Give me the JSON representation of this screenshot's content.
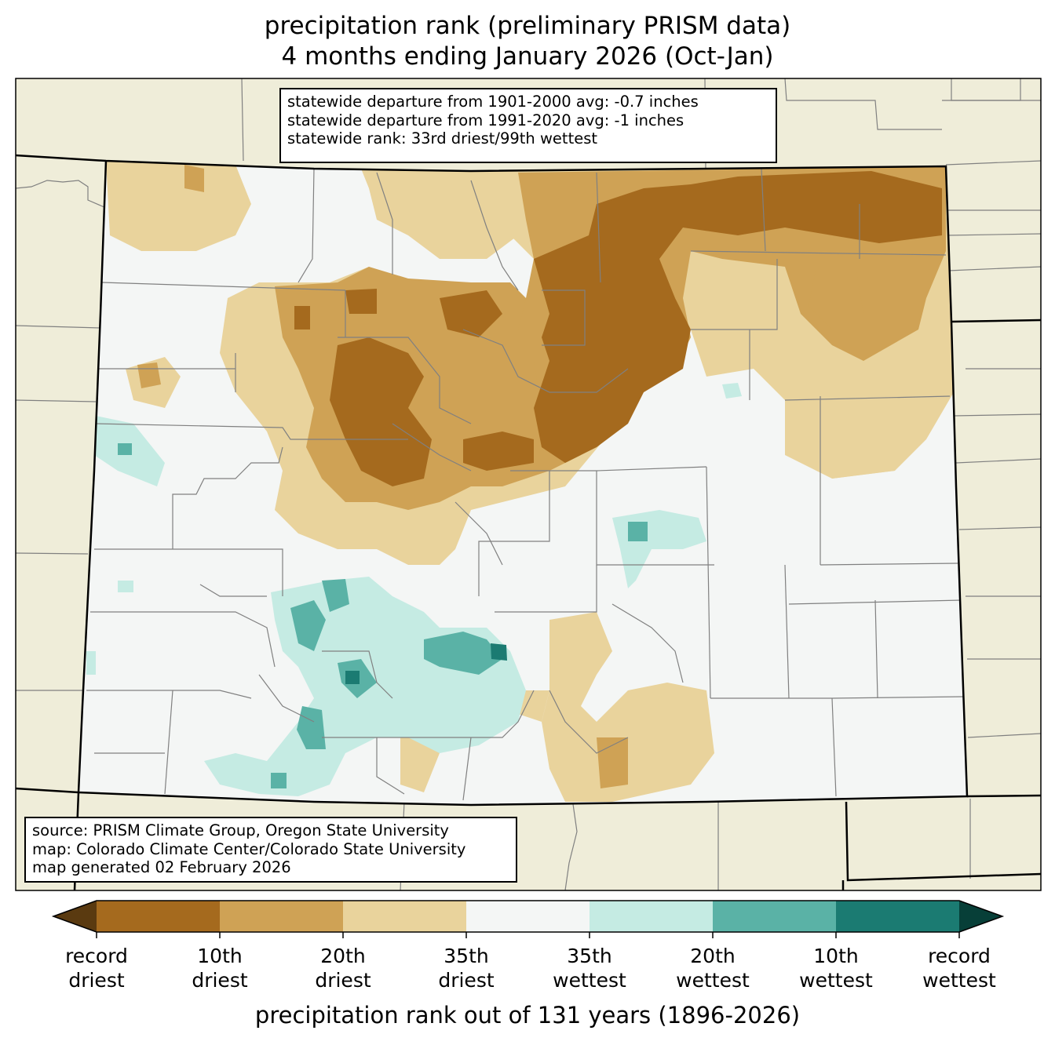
{
  "title": {
    "line1": "precipitation rank (preliminary PRISM data)",
    "line2": "4 months ending January 2026 (Oct-Jan)"
  },
  "stats_box": [
    "statewide departure from 1901-2000 avg: -0.7 inches",
    "statewide departure from 1991-2020 avg: -1 inches",
    "statewide rank: 33rd driest/99th wettest"
  ],
  "credits_box": [
    "source: PRISM Climate Group, Oregon State University",
    "map: Colorado Climate Center/Colorado State University",
    "map generated 02 February 2026"
  ],
  "colorbar": {
    "title": "precipitation rank out of 131 years (1896-2026)",
    "ticks": [
      {
        "line1": "record",
        "line2": "driest"
      },
      {
        "line1": "10th",
        "line2": "driest"
      },
      {
        "line1": "20th",
        "line2": "driest"
      },
      {
        "line1": "35th",
        "line2": "driest"
      },
      {
        "line1": "35th",
        "line2": "wettest"
      },
      {
        "line1": "20th",
        "line2": "wettest"
      },
      {
        "line1": "10th",
        "line2": "wettest"
      },
      {
        "line1": "record",
        "line2": "wettest"
      }
    ],
    "colors": [
      "#5a3a10",
      "#a56a1e",
      "#cfa255",
      "#e9d39c",
      "#f4f6f5",
      "#c5ebe3",
      "#5ab2a6",
      "#1b7b72",
      "#073f38"
    ]
  },
  "map_colors": {
    "background_states": "#efedd9",
    "ocean": "#ffffff",
    "county_lines": "#808080",
    "state_lines": "#000000"
  }
}
